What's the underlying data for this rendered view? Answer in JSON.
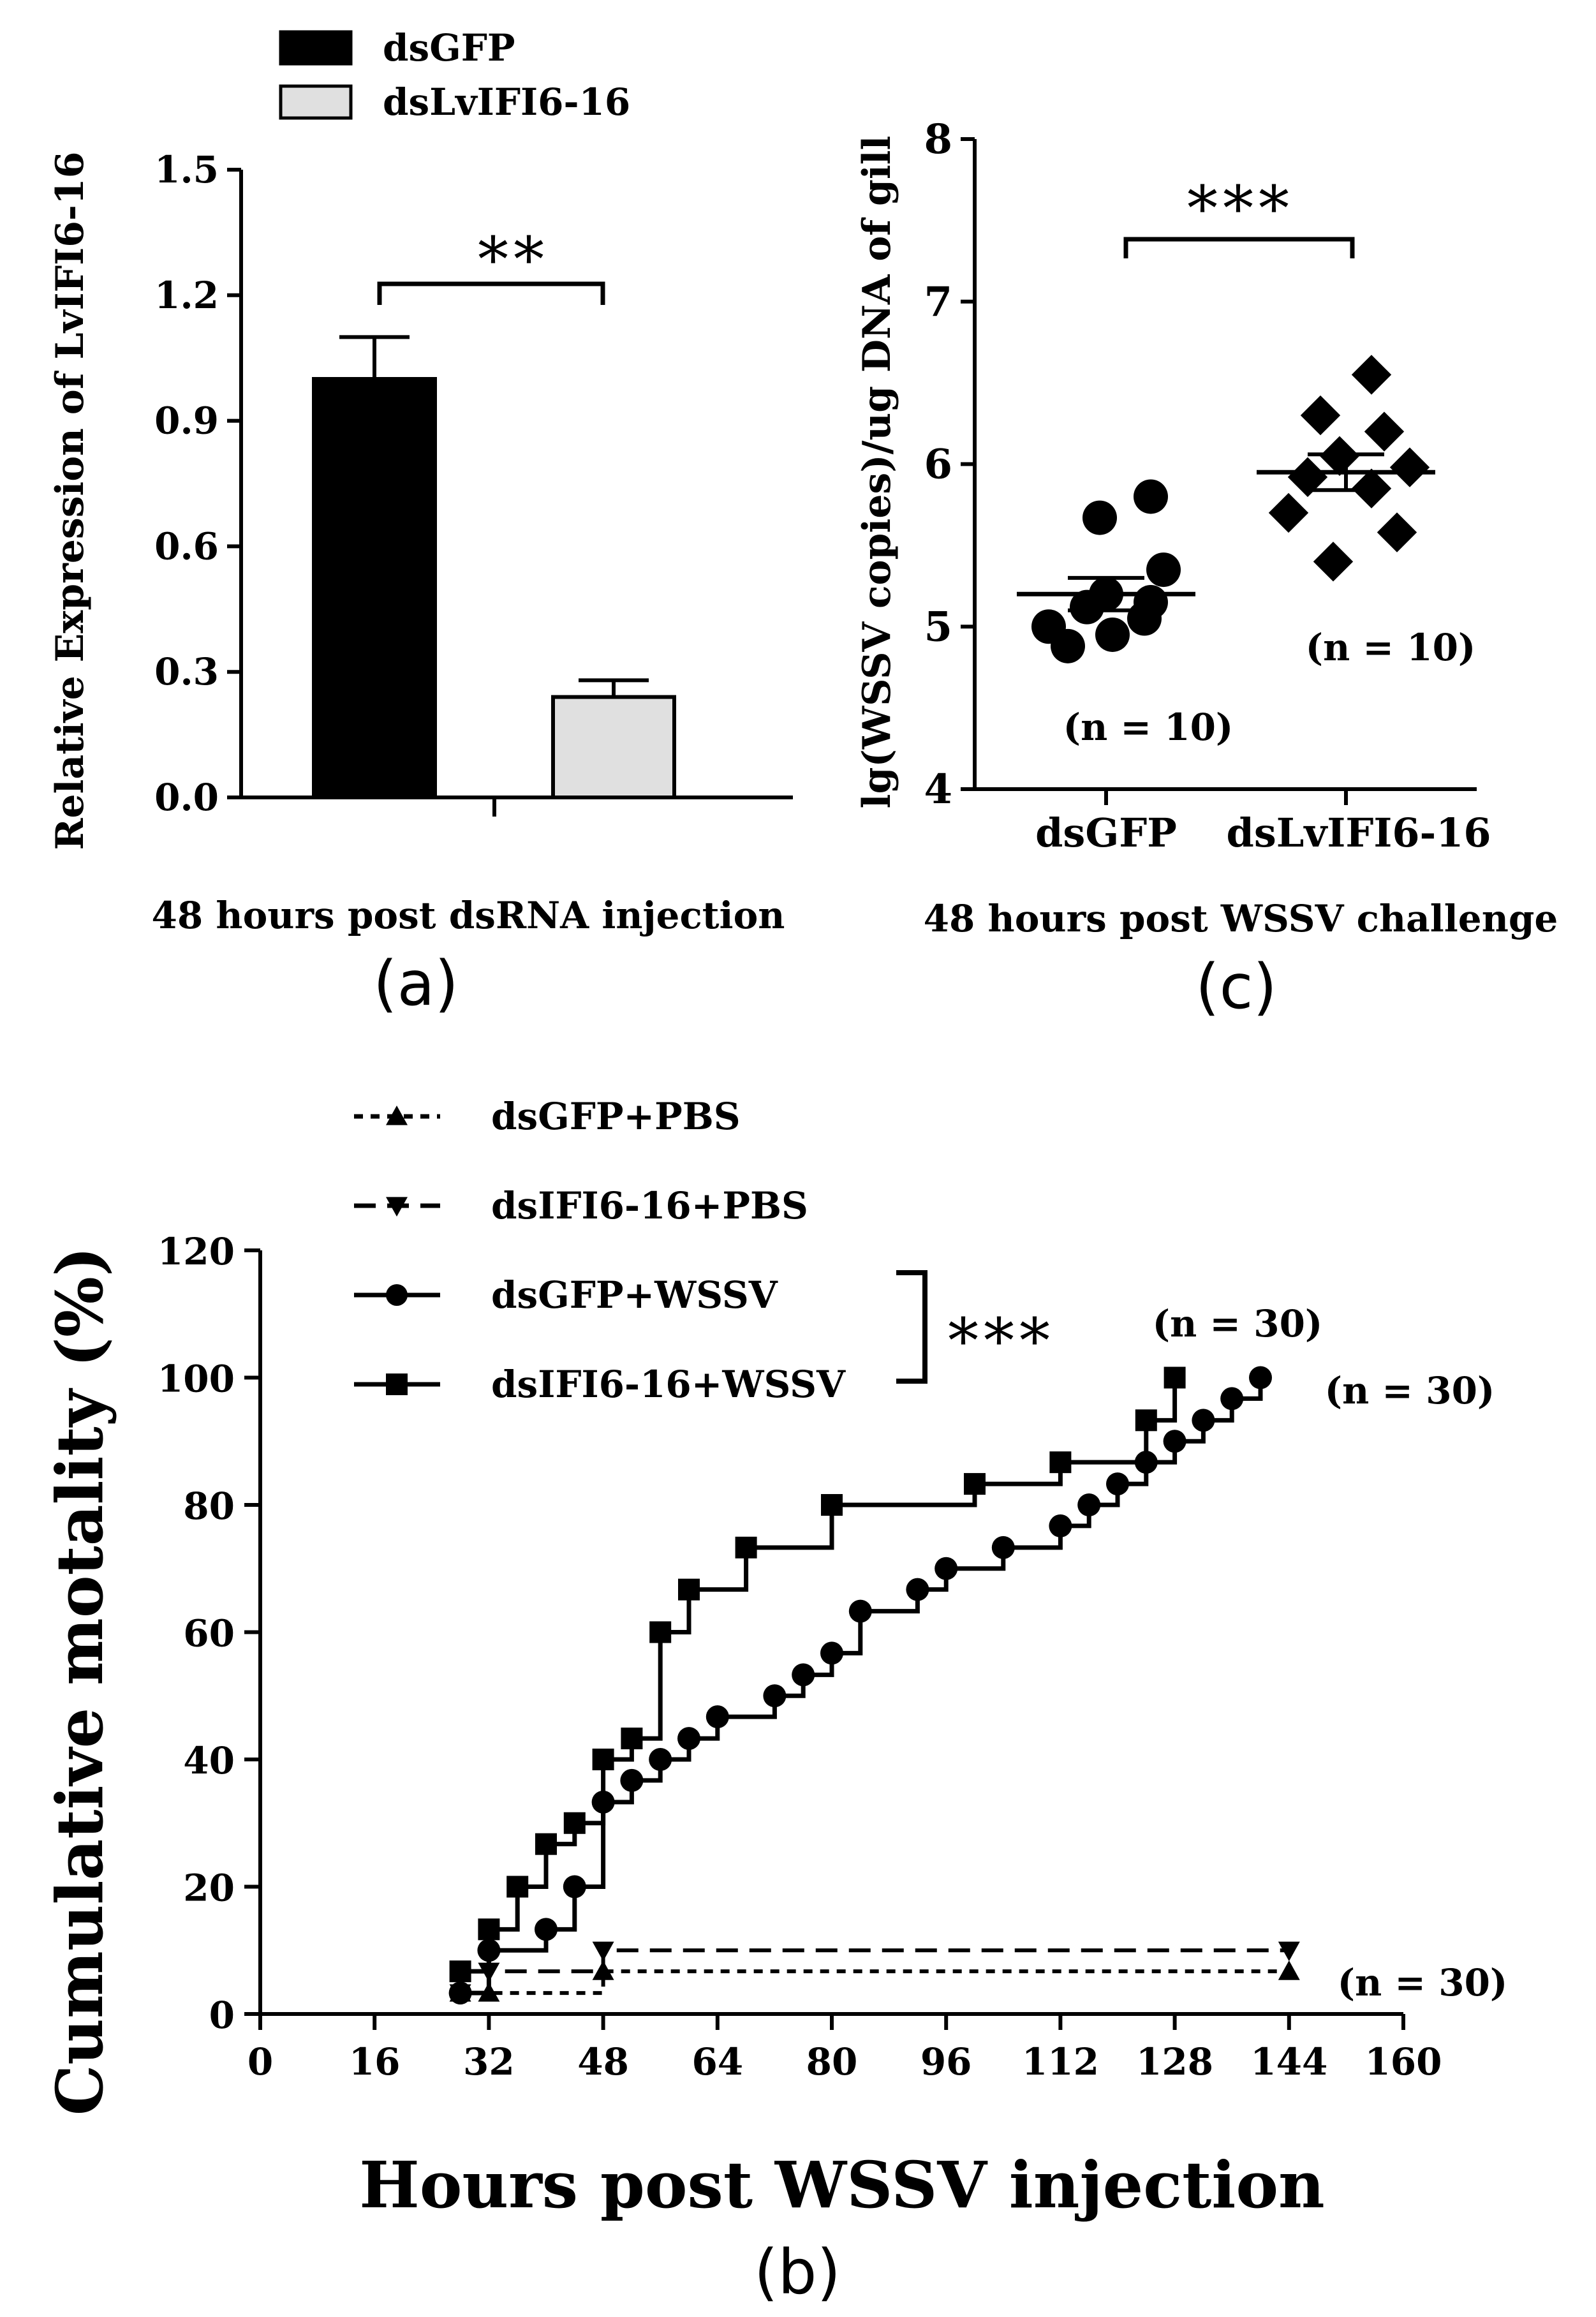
{
  "chart_data": [
    {
      "id": "a",
      "type": "bar",
      "panel_label": "(a)",
      "title": "",
      "xlabel": "48 hours post dsRNA injection",
      "ylabel": "Relative Expression of LvIFI6-16",
      "ylim": [
        0,
        1.5
      ],
      "yticks": [
        "0.0",
        "0.3",
        "0.6",
        "0.9",
        "1.2",
        "1.5"
      ],
      "categories": [
        "dsGFP",
        "dsLvIFI6-16"
      ],
      "values": [
        1.0,
        0.24
      ],
      "errors": [
        0.1,
        0.04
      ],
      "colors": [
        "#000000",
        "#e0e0e0"
      ],
      "legend": [
        "dsGFP",
        "dsLvIFI6-16"
      ],
      "significance": "**"
    },
    {
      "id": "c",
      "type": "scatter",
      "panel_label": "(c)",
      "title": "",
      "xlabel": "48 hours post WSSV challenge",
      "ylabel": "lg(WSSV copies)/ug DNA of gill",
      "ylim": [
        4,
        8
      ],
      "yticks": [
        "4",
        "5",
        "6",
        "7",
        "8"
      ],
      "categories": [
        "dsGFP",
        "dsLvIFI6-16"
      ],
      "series": [
        {
          "name": "dsGFP",
          "marker": "circle",
          "values": [
            4.88,
            4.95,
            5.0,
            5.05,
            5.12,
            5.15,
            5.2,
            5.35,
            5.67,
            5.8
          ],
          "mean": 5.2,
          "sem": 0.1,
          "n_label": "(n = 10)"
        },
        {
          "name": "dsLvIFI6-16",
          "marker": "diamond",
          "values": [
            5.4,
            5.58,
            5.7,
            5.85,
            5.92,
            5.98,
            6.05,
            6.2,
            6.3,
            6.55
          ],
          "mean": 5.95,
          "sem": 0.11,
          "n_label": "(n = 10)"
        }
      ],
      "significance": "***"
    },
    {
      "id": "b",
      "type": "line",
      "panel_label": "(b)",
      "title": "",
      "xlabel": "Hours post WSSV injection",
      "ylabel": "Cumulative motality (%)",
      "xlim": [
        0,
        160
      ],
      "ylim": [
        0,
        120
      ],
      "xticks": [
        "0",
        "16",
        "32",
        "48",
        "64",
        "80",
        "96",
        "112",
        "128",
        "144",
        "160"
      ],
      "yticks": [
        "0",
        "20",
        "40",
        "60",
        "80",
        "100",
        "120"
      ],
      "significance": "***",
      "series": [
        {
          "name": "dsGFP+PBS",
          "marker": "triangle-up",
          "style": "dotted",
          "x": [
            28,
            32,
            48,
            144
          ],
          "y": [
            3.3,
            3.3,
            6.7,
            6.7
          ],
          "n_label": "(n = 30)"
        },
        {
          "name": "dsIFI6-16+PBS",
          "marker": "triangle-down",
          "style": "dashed",
          "x": [
            28,
            32,
            48,
            144
          ],
          "y": [
            3.3,
            6.7,
            10,
            10
          ],
          "n_label": ""
        },
        {
          "name": "dsGFP+WSSV",
          "marker": "circle",
          "style": "solid",
          "x": [
            28,
            32,
            40,
            44,
            48,
            52,
            56,
            60,
            64,
            72,
            76,
            80,
            84,
            92,
            96,
            104,
            112,
            116,
            120,
            124,
            128,
            132,
            136,
            140
          ],
          "y": [
            3.3,
            10,
            13.3,
            20,
            33.3,
            36.7,
            40,
            43.3,
            46.7,
            50,
            53.3,
            56.7,
            63.3,
            66.7,
            70,
            73.3,
            76.7,
            80,
            83.3,
            86.7,
            90,
            93.3,
            96.7,
            100
          ],
          "n_label": "(n = 30)"
        },
        {
          "name": "dsIFI6-16+WSSV",
          "marker": "square",
          "style": "solid",
          "x": [
            28,
            32,
            36,
            40,
            44,
            48,
            52,
            56,
            60,
            68,
            80,
            100,
            112,
            124,
            128
          ],
          "y": [
            6.7,
            13.3,
            20,
            26.7,
            30,
            40,
            43.3,
            60,
            66.7,
            73.3,
            80,
            83.3,
            86.7,
            93.3,
            100
          ],
          "n_label": "(n = 30)"
        }
      ]
    }
  ]
}
